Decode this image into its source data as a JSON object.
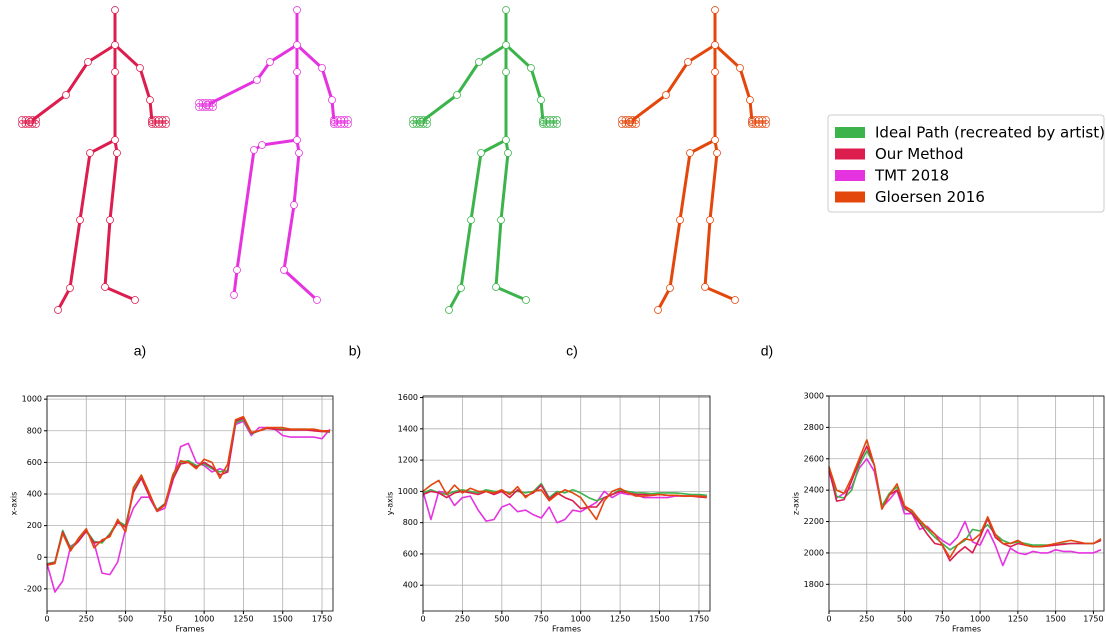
{
  "panels": [
    "a)",
    "b)",
    "c)",
    "d)"
  ],
  "legend": [
    {
      "name": "Ideal Path (recreated by artist)",
      "color": "#3cb44b"
    },
    {
      "name": "Our Method",
      "color": "#dc1d4e"
    },
    {
      "name": "TMT 2018",
      "color": "#e633e0"
    },
    {
      "name": "Gloersen 2016",
      "color": "#e4470c"
    }
  ],
  "chart_data": [
    {
      "type": "line",
      "x_label": "Frames",
      "y_label": "x-axis",
      "x": [
        0,
        50,
        100,
        150,
        200,
        250,
        300,
        350,
        400,
        450,
        500,
        550,
        600,
        650,
        700,
        750,
        800,
        850,
        900,
        950,
        1000,
        1050,
        1100,
        1150,
        1200,
        1250,
        1300,
        1350,
        1400,
        1450,
        1500,
        1550,
        1600,
        1650,
        1700,
        1750,
        1800
      ],
      "xlim": [
        0,
        1820
      ],
      "xticks": [
        0,
        250,
        500,
        750,
        1000,
        1250,
        1500,
        1750
      ],
      "ylim": [
        -340,
        1020
      ],
      "yticks": [
        -200,
        0,
        200,
        400,
        600,
        800,
        1000
      ],
      "grid": true,
      "series": [
        {
          "values": [
            -40,
            -30,
            170,
            60,
            110,
            170,
            100,
            90,
            150,
            230,
            200,
            420,
            510,
            400,
            300,
            340,
            500,
            600,
            610,
            580,
            590,
            560,
            540,
            550,
            850,
            870,
            780,
            800,
            820,
            810,
            810,
            810,
            810,
            810,
            805,
            800,
            790
          ]
        },
        {
          "values": [
            -45,
            -35,
            160,
            50,
            100,
            165,
            90,
            100,
            140,
            220,
            190,
            410,
            500,
            390,
            295,
            335,
            490,
            590,
            600,
            570,
            600,
            570,
            520,
            540,
            860,
            880,
            785,
            800,
            815,
            810,
            805,
            805,
            805,
            805,
            800,
            795,
            795
          ]
        },
        {
          "values": [
            -40,
            -220,
            -150,
            70,
            100,
            170,
            90,
            -100,
            -110,
            -30,
            180,
            310,
            380,
            380,
            290,
            310,
            480,
            700,
            720,
            600,
            580,
            540,
            560,
            540,
            840,
            860,
            770,
            820,
            820,
            810,
            770,
            760,
            760,
            760,
            760,
            750,
            810
          ]
        },
        {
          "values": [
            -50,
            -40,
            150,
            40,
            120,
            180,
            60,
            110,
            130,
            240,
            160,
            440,
            520,
            410,
            290,
            330,
            520,
            610,
            600,
            560,
            620,
            600,
            500,
            590,
            870,
            890,
            790,
            800,
            820,
            820,
            820,
            810,
            810,
            810,
            810,
            800,
            800
          ]
        }
      ]
    },
    {
      "type": "line",
      "x_label": "Frames",
      "y_label": "y-axis",
      "x": [
        0,
        50,
        100,
        150,
        200,
        250,
        300,
        350,
        400,
        450,
        500,
        550,
        600,
        650,
        700,
        750,
        800,
        850,
        900,
        950,
        1000,
        1050,
        1100,
        1150,
        1200,
        1250,
        1300,
        1350,
        1400,
        1450,
        1500,
        1550,
        1600,
        1650,
        1700,
        1750,
        1800
      ],
      "xlim": [
        0,
        1820
      ],
      "xticks": [
        0,
        250,
        500,
        750,
        1000,
        1250,
        1500,
        1750
      ],
      "ylim": [
        235,
        1610
      ],
      "yticks": [
        400,
        600,
        800,
        1000,
        1200,
        1400,
        1600
      ],
      "grid": true,
      "series": [
        {
          "values": [
            990,
            1010,
            990,
            980,
            1000,
            1010,
            1000,
            990,
            1010,
            1000,
            1000,
            990,
            1000,
            990,
            1000,
            1050,
            960,
            1000,
            990,
            1010,
            990,
            960,
            940,
            960,
            980,
            1010,
            1000,
            990,
            990,
            985,
            990,
            990,
            990,
            985,
            980,
            980,
            975
          ]
        },
        {
          "values": [
            980,
            1000,
            990,
            960,
            990,
            1000,
            990,
            980,
            1000,
            980,
            1000,
            960,
            1010,
            970,
            990,
            1040,
            950,
            990,
            960,
            940,
            890,
            900,
            900,
            960,
            980,
            1000,
            990,
            980,
            980,
            975,
            980,
            975,
            975,
            970,
            970,
            965,
            960
          ]
        },
        {
          "values": [
            1000,
            820,
            1000,
            990,
            910,
            960,
            970,
            880,
            810,
            820,
            900,
            920,
            870,
            880,
            850,
            830,
            900,
            800,
            820,
            880,
            870,
            900,
            930,
            1000,
            960,
            990,
            980,
            980,
            960,
            960,
            960,
            960,
            970,
            970,
            970,
            970,
            970
          ]
        },
        {
          "values": [
            1000,
            1040,
            1070,
            980,
            1040,
            990,
            1020,
            1000,
            1000,
            990,
            1010,
            980,
            1030,
            960,
            1000,
            1010,
            940,
            980,
            1010,
            990,
            960,
            890,
            820,
            940,
            1000,
            1020,
            990,
            970,
            970,
            975,
            980,
            975,
            975,
            970,
            970,
            970,
            965
          ]
        }
      ]
    },
    {
      "type": "line",
      "x_label": "Frames",
      "y_label": "z-axis",
      "x": [
        0,
        50,
        100,
        150,
        200,
        250,
        300,
        350,
        400,
        450,
        500,
        550,
        600,
        650,
        700,
        750,
        800,
        850,
        900,
        950,
        1000,
        1050,
        1100,
        1150,
        1200,
        1250,
        1300,
        1350,
        1400,
        1450,
        1500,
        1550,
        1600,
        1650,
        1700,
        1750,
        1800
      ],
      "xlim": [
        0,
        1820
      ],
      "xticks": [
        0,
        250,
        500,
        750,
        1000,
        1250,
        1500,
        1750
      ],
      "ylim": [
        1630,
        3000
      ],
      "yticks": [
        1800,
        2000,
        2200,
        2400,
        2600,
        2800,
        3000
      ],
      "grid": true,
      "series": [
        {
          "values": [
            2550,
            2360,
            2350,
            2400,
            2560,
            2650,
            2560,
            2300,
            2380,
            2420,
            2280,
            2260,
            2200,
            2150,
            2100,
            2060,
            2020,
            2050,
            2080,
            2150,
            2140,
            2180,
            2120,
            2080,
            2060,
            2070,
            2060,
            2050,
            2050,
            2050,
            2050,
            2060,
            2060,
            2060,
            2060,
            2060,
            2080
          ]
        },
        {
          "values": [
            2540,
            2330,
            2340,
            2460,
            2580,
            2680,
            2560,
            2280,
            2370,
            2400,
            2290,
            2250,
            2190,
            2120,
            2060,
            2050,
            1950,
            2000,
            2040,
            2000,
            2100,
            2220,
            2100,
            2060,
            2040,
            2060,
            2050,
            2040,
            2040,
            2045,
            2050,
            2055,
            2060,
            2060,
            2060,
            2060,
            2080
          ]
        },
        {
          "values": [
            2520,
            2350,
            2380,
            2420,
            2540,
            2600,
            2520,
            2290,
            2340,
            2400,
            2250,
            2250,
            2150,
            2170,
            2120,
            2080,
            2050,
            2100,
            2200,
            2070,
            2050,
            2150,
            2050,
            1920,
            2030,
            2000,
            1990,
            2010,
            2000,
            2000,
            2020,
            2010,
            2010,
            2000,
            2000,
            2000,
            2020
          ]
        },
        {
          "values": [
            2550,
            2400,
            2380,
            2480,
            2600,
            2720,
            2560,
            2280,
            2370,
            2440,
            2300,
            2270,
            2210,
            2160,
            2120,
            2050,
            1970,
            2050,
            2090,
            2080,
            2120,
            2230,
            2120,
            2060,
            2060,
            2080,
            2050,
            2040,
            2040,
            2050,
            2060,
            2070,
            2080,
            2070,
            2060,
            2060,
            2090
          ]
        }
      ]
    }
  ]
}
